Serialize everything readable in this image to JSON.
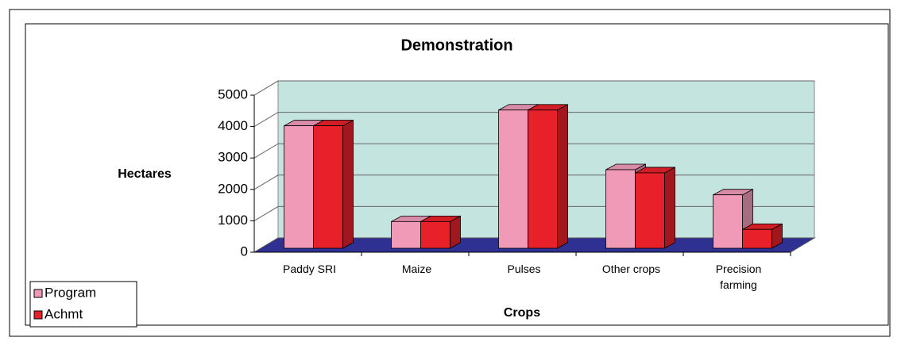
{
  "chart_data": {
    "type": "bar3d",
    "title": "Demonstration",
    "x_label": "Crops",
    "y_label": "Hectares",
    "categories": [
      "Paddy SRI",
      "Maize",
      "Pulses",
      "Other crops",
      "Precision farming"
    ],
    "series": [
      {
        "name": "Program",
        "color": "#f09ab8",
        "values": [
          3900,
          850,
          4400,
          2500,
          1700
        ]
      },
      {
        "name": "Achmt",
        "color": "#e8202a",
        "values": [
          3900,
          850,
          4400,
          2400,
          600
        ]
      }
    ],
    "ylim": [
      0,
      5000
    ],
    "yticks": [
      0,
      1000,
      2000,
      3000,
      4000,
      5000
    ],
    "grid": true,
    "wall_color": "#c4e4e0",
    "floor_color": "#2e3192",
    "legend": "bottom-left"
  }
}
